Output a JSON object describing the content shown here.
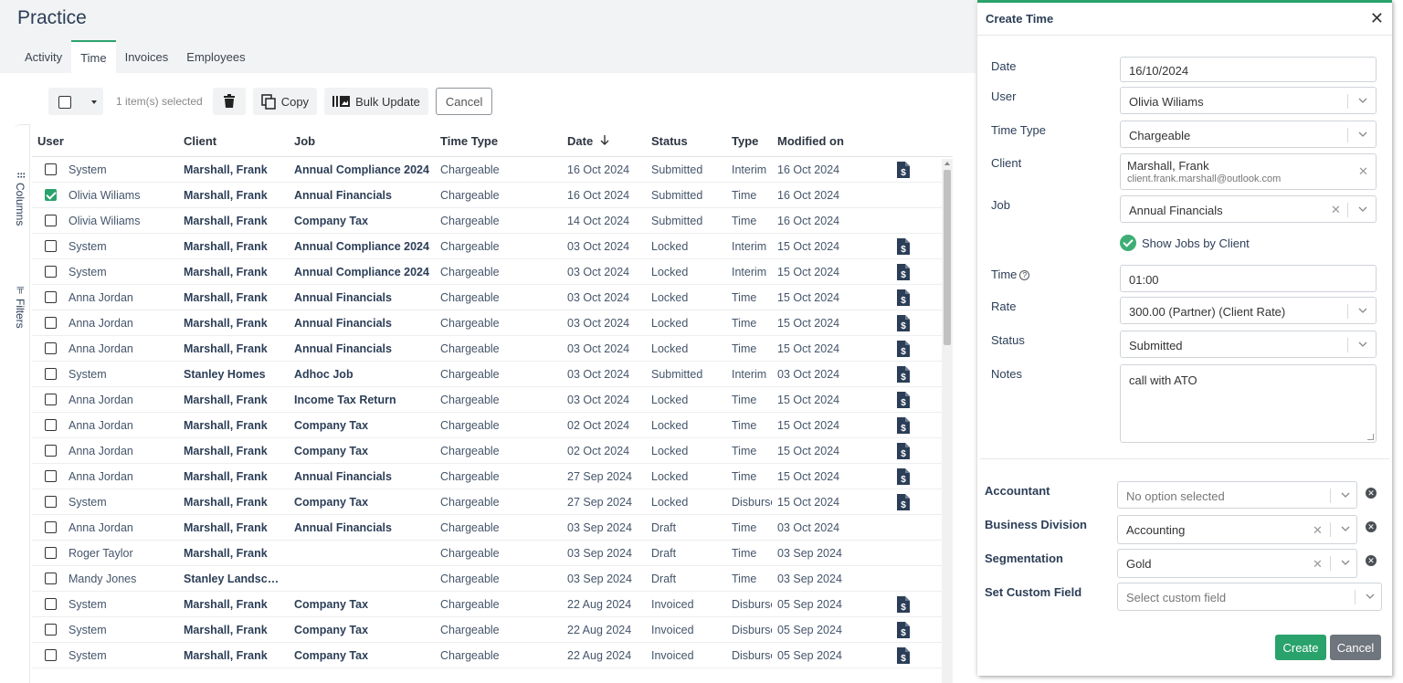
{
  "app": {
    "title": "Practice"
  },
  "tabs": [
    {
      "label": "Activity",
      "active": false
    },
    {
      "label": "Time",
      "active": true
    },
    {
      "label": "Invoices",
      "active": false
    },
    {
      "label": "Employees",
      "active": false
    }
  ],
  "toolbar": {
    "selected_text": "1 item(s) selected",
    "delete_icon": "trash-icon",
    "copy_label": "Copy",
    "bulk_label": "Bulk Update",
    "cancel_label": "Cancel"
  },
  "rail": {
    "columns_label": "Columns",
    "filters_label": "Filters"
  },
  "table": {
    "headers": {
      "user": "User",
      "client": "Client",
      "job": "Job",
      "time_type": "Time Type",
      "date": "Date",
      "status": "Status",
      "type": "Type",
      "modified": "Modified on"
    },
    "sort": {
      "column": "Date",
      "direction": "desc"
    },
    "rows": [
      {
        "checked": false,
        "user": "System",
        "client": "Marshall, Frank",
        "job": "Annual Compliance 2024",
        "time_type": "Chargeable",
        "date": "16 Oct 2024",
        "status": "Submitted",
        "type": "Interim",
        "modified": "16 Oct 2024",
        "invoice_icon": true
      },
      {
        "checked": true,
        "user": "Olivia Wiliams",
        "client": "Marshall, Frank",
        "job": "Annual Financials",
        "time_type": "Chargeable",
        "date": "16 Oct 2024",
        "status": "Submitted",
        "type": "Time",
        "modified": "16 Oct 2024",
        "invoice_icon": false
      },
      {
        "checked": false,
        "user": "Olivia Wiliams",
        "client": "Marshall, Frank",
        "job": "Company Tax",
        "time_type": "Chargeable",
        "date": "14 Oct 2024",
        "status": "Submitted",
        "type": "Time",
        "modified": "16 Oct 2024",
        "invoice_icon": false
      },
      {
        "checked": false,
        "user": "System",
        "client": "Marshall, Frank",
        "job": "Annual Compliance 2024",
        "time_type": "Chargeable",
        "date": "03 Oct 2024",
        "status": "Locked",
        "type": "Interim",
        "modified": "15 Oct 2024",
        "invoice_icon": true
      },
      {
        "checked": false,
        "user": "System",
        "client": "Marshall, Frank",
        "job": "Annual Compliance 2024",
        "time_type": "Chargeable",
        "date": "03 Oct 2024",
        "status": "Locked",
        "type": "Interim",
        "modified": "15 Oct 2024",
        "invoice_icon": true
      },
      {
        "checked": false,
        "user": "Anna Jordan",
        "client": "Marshall, Frank",
        "job": "Annual Financials",
        "time_type": "Chargeable",
        "date": "03 Oct 2024",
        "status": "Locked",
        "type": "Time",
        "modified": "15 Oct 2024",
        "invoice_icon": true
      },
      {
        "checked": false,
        "user": "Anna Jordan",
        "client": "Marshall, Frank",
        "job": "Annual Financials",
        "time_type": "Chargeable",
        "date": "03 Oct 2024",
        "status": "Locked",
        "type": "Time",
        "modified": "15 Oct 2024",
        "invoice_icon": true
      },
      {
        "checked": false,
        "user": "Anna Jordan",
        "client": "Marshall, Frank",
        "job": "Annual Financials",
        "time_type": "Chargeable",
        "date": "03 Oct 2024",
        "status": "Locked",
        "type": "Time",
        "modified": "15 Oct 2024",
        "invoice_icon": true
      },
      {
        "checked": false,
        "user": "System",
        "client": "Stanley Homes",
        "job": "Adhoc Job",
        "time_type": "Chargeable",
        "date": "03 Oct 2024",
        "status": "Submitted",
        "type": "Interim",
        "modified": "03 Oct 2024",
        "invoice_icon": true
      },
      {
        "checked": false,
        "user": "Anna Jordan",
        "client": "Marshall, Frank",
        "job": "Income Tax Return",
        "time_type": "Chargeable",
        "date": "03 Oct 2024",
        "status": "Locked",
        "type": "Time",
        "modified": "15 Oct 2024",
        "invoice_icon": true
      },
      {
        "checked": false,
        "user": "Anna Jordan",
        "client": "Marshall, Frank",
        "job": "Company Tax",
        "time_type": "Chargeable",
        "date": "02 Oct 2024",
        "status": "Locked",
        "type": "Time",
        "modified": "15 Oct 2024",
        "invoice_icon": true
      },
      {
        "checked": false,
        "user": "Anna Jordan",
        "client": "Marshall, Frank",
        "job": "Company Tax",
        "time_type": "Chargeable",
        "date": "02 Oct 2024",
        "status": "Locked",
        "type": "Time",
        "modified": "15 Oct 2024",
        "invoice_icon": true
      },
      {
        "checked": false,
        "user": "Anna Jordan",
        "client": "Marshall, Frank",
        "job": "Annual Financials",
        "time_type": "Chargeable",
        "date": "27 Sep 2024",
        "status": "Locked",
        "type": "Time",
        "modified": "15 Oct 2024",
        "invoice_icon": true
      },
      {
        "checked": false,
        "user": "System",
        "client": "Marshall, Frank",
        "job": "Company Tax",
        "time_type": "Chargeable",
        "date": "27 Sep 2024",
        "status": "Locked",
        "type": "Disburse",
        "modified": "15 Oct 2024",
        "invoice_icon": true
      },
      {
        "checked": false,
        "user": "Anna Jordan",
        "client": "Marshall, Frank",
        "job": "Annual Financials",
        "time_type": "Chargeable",
        "date": "03 Sep 2024",
        "status": "Draft",
        "type": "Time",
        "modified": "03 Oct 2024",
        "invoice_icon": false
      },
      {
        "checked": false,
        "user": "Roger Taylor",
        "client": "Marshall, Frank",
        "job": "",
        "time_type": "Chargeable",
        "date": "03 Sep 2024",
        "status": "Draft",
        "type": "Time",
        "modified": "03 Sep 2024",
        "invoice_icon": false
      },
      {
        "checked": false,
        "user": "Mandy Jones",
        "client": "Stanley Landscapi...",
        "job": "",
        "time_type": "Chargeable",
        "date": "03 Sep 2024",
        "status": "Draft",
        "type": "Time",
        "modified": "03 Sep 2024",
        "invoice_icon": false
      },
      {
        "checked": false,
        "user": "System",
        "client": "Marshall, Frank",
        "job": "Company Tax",
        "time_type": "Chargeable",
        "date": "22 Aug 2024",
        "status": "Invoiced",
        "type": "Disburse",
        "modified": "05 Sep 2024",
        "invoice_icon": true
      },
      {
        "checked": false,
        "user": "System",
        "client": "Marshall, Frank",
        "job": "Company Tax",
        "time_type": "Chargeable",
        "date": "22 Aug 2024",
        "status": "Invoiced",
        "type": "Disburse",
        "modified": "05 Sep 2024",
        "invoice_icon": true
      },
      {
        "checked": false,
        "user": "System",
        "client": "Marshall, Frank",
        "job": "Company Tax",
        "time_type": "Chargeable",
        "date": "22 Aug 2024",
        "status": "Invoiced",
        "type": "Disburse",
        "modified": "05 Sep 2024",
        "invoice_icon": true
      }
    ]
  },
  "panel": {
    "title": "Create Time",
    "fields": {
      "date": {
        "label": "Date",
        "value": "16/10/2024"
      },
      "user": {
        "label": "User",
        "value": "Olivia Wiliams"
      },
      "time_type": {
        "label": "Time Type",
        "value": "Chargeable"
      },
      "client": {
        "label": "Client",
        "value": "Marshall, Frank",
        "email": "client.frank.marshall@outlook.com"
      },
      "job": {
        "label": "Job",
        "value": "Annual Financials"
      },
      "show_jobs": "Show Jobs by Client",
      "time": {
        "label": "Time",
        "value": "01:00"
      },
      "rate": {
        "label": "Rate",
        "value": "300.00 (Partner) (Client Rate)"
      },
      "status": {
        "label": "Status",
        "value": "Submitted"
      },
      "notes": {
        "label": "Notes",
        "value": "call with ATO"
      }
    },
    "custom": {
      "accountant": {
        "label": "Accountant",
        "value": "No option selected"
      },
      "business_division": {
        "label": "Business Division",
        "value": "Accounting"
      },
      "segmentation": {
        "label": "Segmentation",
        "value": "Gold"
      },
      "set_custom_field": {
        "label": "Set Custom Field",
        "placeholder": "Select custom field"
      }
    },
    "create_label": "Create",
    "cancel_label": "Cancel"
  },
  "colors": {
    "accent": "#2aa26b",
    "title": "#2c3e57",
    "icon": "#2c3e57"
  }
}
